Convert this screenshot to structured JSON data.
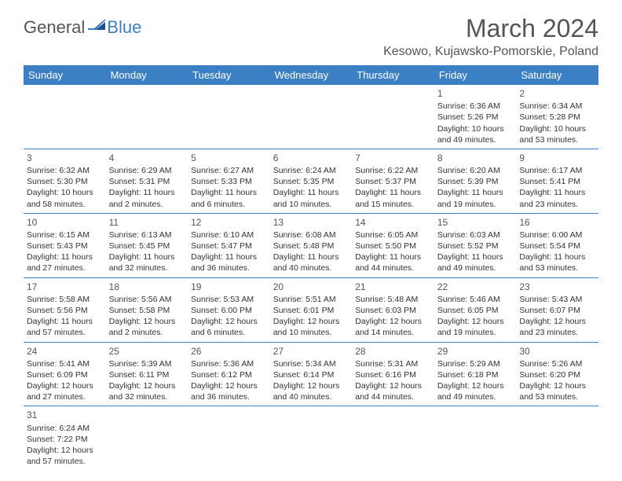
{
  "logo": {
    "text1": "General",
    "text2": "Blue"
  },
  "title": "March 2024",
  "location": "Kesowo, Kujawsko-Pomorskie, Poland",
  "columns": [
    "Sunday",
    "Monday",
    "Tuesday",
    "Wednesday",
    "Thursday",
    "Friday",
    "Saturday"
  ],
  "weeks": [
    [
      null,
      null,
      null,
      null,
      null,
      {
        "d": "1",
        "sr": "Sunrise: 6:36 AM",
        "ss": "Sunset: 5:26 PM",
        "dl": "Daylight: 10 hours and 49 minutes."
      },
      {
        "d": "2",
        "sr": "Sunrise: 6:34 AM",
        "ss": "Sunset: 5:28 PM",
        "dl": "Daylight: 10 hours and 53 minutes."
      }
    ],
    [
      {
        "d": "3",
        "sr": "Sunrise: 6:32 AM",
        "ss": "Sunset: 5:30 PM",
        "dl": "Daylight: 10 hours and 58 minutes."
      },
      {
        "d": "4",
        "sr": "Sunrise: 6:29 AM",
        "ss": "Sunset: 5:31 PM",
        "dl": "Daylight: 11 hours and 2 minutes."
      },
      {
        "d": "5",
        "sr": "Sunrise: 6:27 AM",
        "ss": "Sunset: 5:33 PM",
        "dl": "Daylight: 11 hours and 6 minutes."
      },
      {
        "d": "6",
        "sr": "Sunrise: 6:24 AM",
        "ss": "Sunset: 5:35 PM",
        "dl": "Daylight: 11 hours and 10 minutes."
      },
      {
        "d": "7",
        "sr": "Sunrise: 6:22 AM",
        "ss": "Sunset: 5:37 PM",
        "dl": "Daylight: 11 hours and 15 minutes."
      },
      {
        "d": "8",
        "sr": "Sunrise: 6:20 AM",
        "ss": "Sunset: 5:39 PM",
        "dl": "Daylight: 11 hours and 19 minutes."
      },
      {
        "d": "9",
        "sr": "Sunrise: 6:17 AM",
        "ss": "Sunset: 5:41 PM",
        "dl": "Daylight: 11 hours and 23 minutes."
      }
    ],
    [
      {
        "d": "10",
        "sr": "Sunrise: 6:15 AM",
        "ss": "Sunset: 5:43 PM",
        "dl": "Daylight: 11 hours and 27 minutes."
      },
      {
        "d": "11",
        "sr": "Sunrise: 6:13 AM",
        "ss": "Sunset: 5:45 PM",
        "dl": "Daylight: 11 hours and 32 minutes."
      },
      {
        "d": "12",
        "sr": "Sunrise: 6:10 AM",
        "ss": "Sunset: 5:47 PM",
        "dl": "Daylight: 11 hours and 36 minutes."
      },
      {
        "d": "13",
        "sr": "Sunrise: 6:08 AM",
        "ss": "Sunset: 5:48 PM",
        "dl": "Daylight: 11 hours and 40 minutes."
      },
      {
        "d": "14",
        "sr": "Sunrise: 6:05 AM",
        "ss": "Sunset: 5:50 PM",
        "dl": "Daylight: 11 hours and 44 minutes."
      },
      {
        "d": "15",
        "sr": "Sunrise: 6:03 AM",
        "ss": "Sunset: 5:52 PM",
        "dl": "Daylight: 11 hours and 49 minutes."
      },
      {
        "d": "16",
        "sr": "Sunrise: 6:00 AM",
        "ss": "Sunset: 5:54 PM",
        "dl": "Daylight: 11 hours and 53 minutes."
      }
    ],
    [
      {
        "d": "17",
        "sr": "Sunrise: 5:58 AM",
        "ss": "Sunset: 5:56 PM",
        "dl": "Daylight: 11 hours and 57 minutes."
      },
      {
        "d": "18",
        "sr": "Sunrise: 5:56 AM",
        "ss": "Sunset: 5:58 PM",
        "dl": "Daylight: 12 hours and 2 minutes."
      },
      {
        "d": "19",
        "sr": "Sunrise: 5:53 AM",
        "ss": "Sunset: 6:00 PM",
        "dl": "Daylight: 12 hours and 6 minutes."
      },
      {
        "d": "20",
        "sr": "Sunrise: 5:51 AM",
        "ss": "Sunset: 6:01 PM",
        "dl": "Daylight: 12 hours and 10 minutes."
      },
      {
        "d": "21",
        "sr": "Sunrise: 5:48 AM",
        "ss": "Sunset: 6:03 PM",
        "dl": "Daylight: 12 hours and 14 minutes."
      },
      {
        "d": "22",
        "sr": "Sunrise: 5:46 AM",
        "ss": "Sunset: 6:05 PM",
        "dl": "Daylight: 12 hours and 19 minutes."
      },
      {
        "d": "23",
        "sr": "Sunrise: 5:43 AM",
        "ss": "Sunset: 6:07 PM",
        "dl": "Daylight: 12 hours and 23 minutes."
      }
    ],
    [
      {
        "d": "24",
        "sr": "Sunrise: 5:41 AM",
        "ss": "Sunset: 6:09 PM",
        "dl": "Daylight: 12 hours and 27 minutes."
      },
      {
        "d": "25",
        "sr": "Sunrise: 5:39 AM",
        "ss": "Sunset: 6:11 PM",
        "dl": "Daylight: 12 hours and 32 minutes."
      },
      {
        "d": "26",
        "sr": "Sunrise: 5:36 AM",
        "ss": "Sunset: 6:12 PM",
        "dl": "Daylight: 12 hours and 36 minutes."
      },
      {
        "d": "27",
        "sr": "Sunrise: 5:34 AM",
        "ss": "Sunset: 6:14 PM",
        "dl": "Daylight: 12 hours and 40 minutes."
      },
      {
        "d": "28",
        "sr": "Sunrise: 5:31 AM",
        "ss": "Sunset: 6:16 PM",
        "dl": "Daylight: 12 hours and 44 minutes."
      },
      {
        "d": "29",
        "sr": "Sunrise: 5:29 AM",
        "ss": "Sunset: 6:18 PM",
        "dl": "Daylight: 12 hours and 49 minutes."
      },
      {
        "d": "30",
        "sr": "Sunrise: 5:26 AM",
        "ss": "Sunset: 6:20 PM",
        "dl": "Daylight: 12 hours and 53 minutes."
      }
    ],
    [
      {
        "d": "31",
        "sr": "Sunrise: 6:24 AM",
        "ss": "Sunset: 7:22 PM",
        "dl": "Daylight: 12 hours and 57 minutes."
      },
      null,
      null,
      null,
      null,
      null,
      null
    ]
  ],
  "style": {
    "header_bg": "#3b7fc4",
    "header_fg": "#ffffff",
    "border_color": "#3b7fc4",
    "page_bg": "#ffffff",
    "text_color": "#333333",
    "title_fontsize": 32,
    "body_fontsize": 10.5
  }
}
